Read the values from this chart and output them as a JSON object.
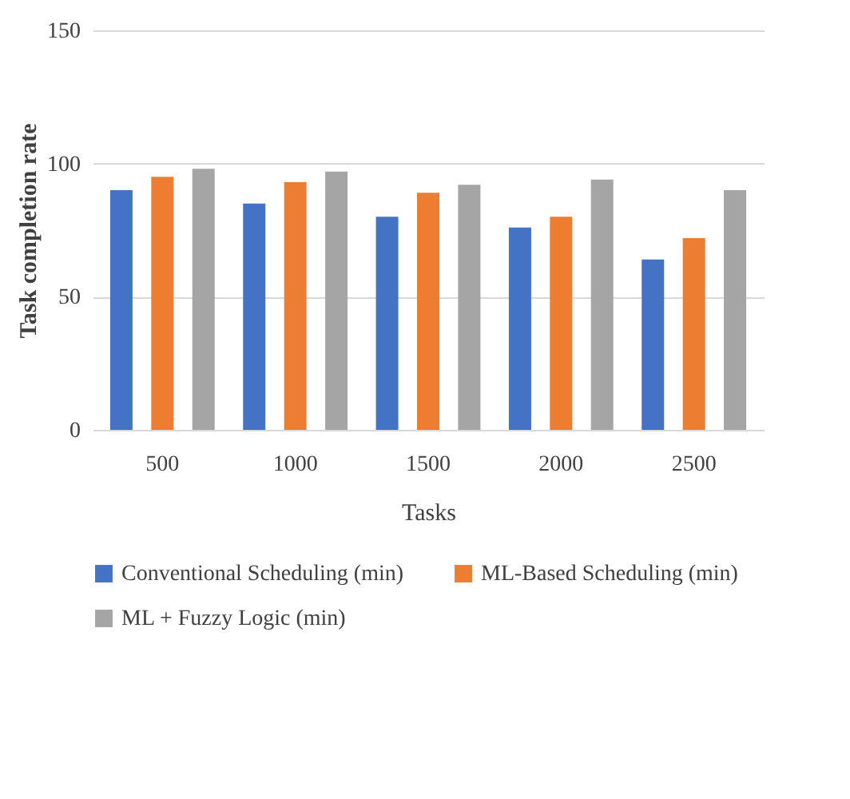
{
  "chart_data": {
    "type": "bar",
    "xlabel": "Tasks",
    "ylabel": "Task completion rate",
    "categories": [
      "500",
      "1000",
      "1500",
      "2000",
      "2500"
    ],
    "series": [
      {
        "name": "Conventional Scheduling (min)",
        "color": "#4472c4",
        "values": [
          90,
          85,
          80,
          76,
          64
        ]
      },
      {
        "name": "ML-Based Scheduling (min)",
        "color": "#ed7d31",
        "values": [
          95,
          93,
          89,
          80,
          72
        ]
      },
      {
        "name": "ML + Fuzzy Logic (min)",
        "color": "#a5a5a5",
        "values": [
          98,
          97,
          92,
          94,
          90
        ]
      }
    ],
    "ylim": [
      0,
      150
    ],
    "yticks": [
      0,
      50,
      100,
      150
    ],
    "grid": "y",
    "legend": "bottom"
  }
}
